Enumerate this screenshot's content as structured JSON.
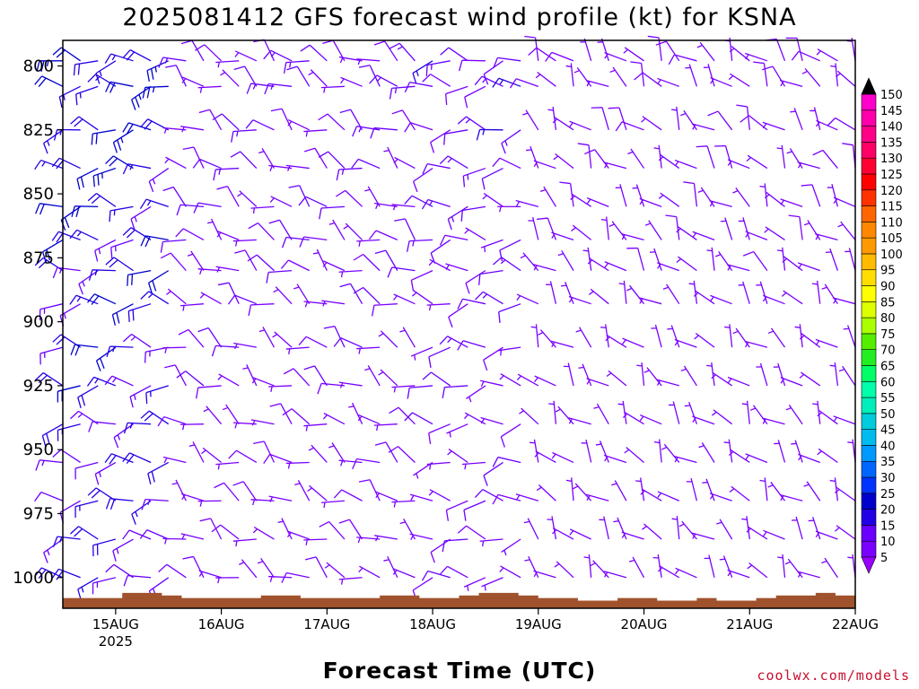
{
  "title": "2025081412 GFS forecast wind profile (kt) for KSNA",
  "credit": "coolwx.com/models",
  "chart_data": {
    "type": "wind_barb_profile",
    "title": "2025081412 GFS forecast wind profile (kt) for KSNA",
    "xlabel": "Forecast Time (UTC)",
    "ylabel": "",
    "y_ticks": [
      800,
      825,
      850,
      875,
      900,
      925,
      950,
      975,
      1000
    ],
    "ylim": [
      1012,
      790
    ],
    "x_ticks": [
      {
        "label": "15AUG",
        "sub": "2025",
        "hour": 12
      },
      {
        "label": "16AUG",
        "sub": "",
        "hour": 36
      },
      {
        "label": "17AUG",
        "sub": "",
        "hour": 60
      },
      {
        "label": "18AUG",
        "sub": "",
        "hour": 84
      },
      {
        "label": "19AUG",
        "sub": "",
        "hour": 108
      },
      {
        "label": "20AUG",
        "sub": "",
        "hour": 132
      },
      {
        "label": "21AUG",
        "sub": "",
        "hour": 156
      },
      {
        "label": "22AUG",
        "sub": "",
        "hour": 180
      }
    ],
    "xlim": [
      0,
      180
    ],
    "time_step_hours": 4,
    "pressure_levels": [
      798,
      808,
      825,
      840,
      855,
      868,
      880,
      893,
      910,
      925,
      940,
      955,
      970,
      985,
      1000
    ],
    "wind_regimes": [
      {
        "hours": [
          0,
          24
        ],
        "dir": 270,
        "speed": 20
      },
      {
        "hours": [
          28,
          80
        ],
        "dir": 300,
        "speed": 10
      },
      {
        "hours": [
          84,
          104
        ],
        "dir": 270,
        "speed": 12
      },
      {
        "hours": [
          108,
          180
        ],
        "dir": 320,
        "speed": 6
      }
    ],
    "surface_pressure": [
      1008,
      1008,
      1008,
      1006,
      1006,
      1007,
      1008,
      1008,
      1008,
      1008,
      1007,
      1007,
      1008,
      1008,
      1008,
      1008,
      1007,
      1007,
      1008,
      1008,
      1007,
      1006,
      1006,
      1007,
      1008,
      1008,
      1009,
      1009,
      1008,
      1008,
      1009,
      1009,
      1008,
      1009,
      1009,
      1008,
      1007,
      1007,
      1006,
      1007
    ],
    "colorbar": {
      "levels": [
        5,
        10,
        15,
        20,
        25,
        30,
        35,
        40,
        45,
        50,
        55,
        60,
        65,
        70,
        75,
        80,
        85,
        90,
        95,
        100,
        105,
        110,
        115,
        120,
        125,
        130,
        135,
        140,
        145,
        150
      ],
      "colors": [
        "#7a00ff",
        "#6a00ff",
        "#2200e6",
        "#0000cc",
        "#0033ff",
        "#0066ff",
        "#0099ff",
        "#00bbee",
        "#00ccdd",
        "#00eebb",
        "#00ffaa",
        "#00ff66",
        "#22ee22",
        "#55ee00",
        "#aaff00",
        "#ddff00",
        "#ffff00",
        "#ffdd00",
        "#ffbb00",
        "#ff9900",
        "#ff8800",
        "#ff6600",
        "#ff3300",
        "#ff0000",
        "#ff0033",
        "#ff0066",
        "#ff0088",
        "#ff00aa",
        "#ff00cc",
        "#ff33dd"
      ],
      "over_color": "#000000",
      "under_color": "#9900ff"
    },
    "terrain_color": "#a0522d"
  }
}
